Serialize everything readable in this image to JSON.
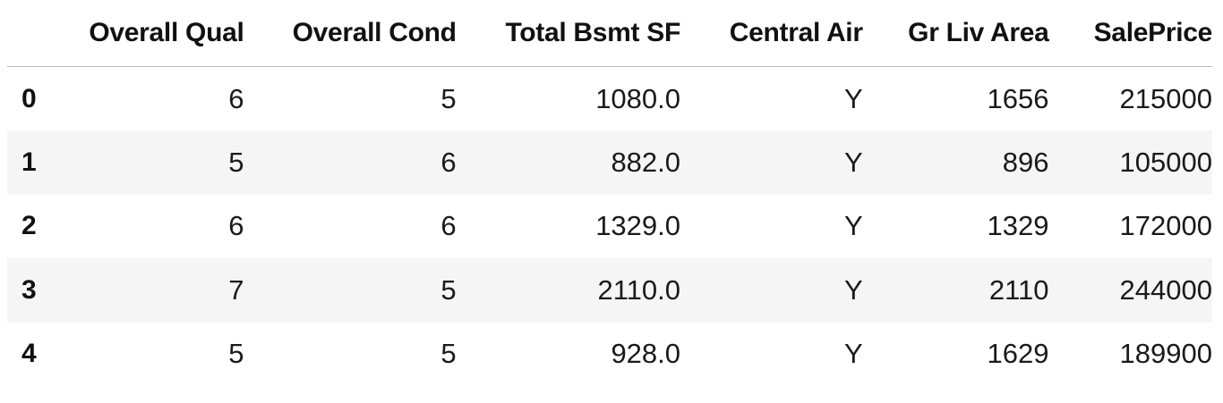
{
  "table": {
    "index_header": "",
    "columns": [
      "Overall Qual",
      "Overall Cond",
      "Total Bsmt SF",
      "Central Air",
      "Gr Liv Area",
      "SalePrice"
    ],
    "rows": [
      {
        "index": "0",
        "cells": [
          "6",
          "5",
          "1080.0",
          "Y",
          "1656",
          "215000"
        ]
      },
      {
        "index": "1",
        "cells": [
          "5",
          "6",
          "882.0",
          "Y",
          "896",
          "105000"
        ]
      },
      {
        "index": "2",
        "cells": [
          "6",
          "6",
          "1329.0",
          "Y",
          "1329",
          "172000"
        ]
      },
      {
        "index": "3",
        "cells": [
          "7",
          "5",
          "2110.0",
          "Y",
          "2110",
          "244000"
        ]
      },
      {
        "index": "4",
        "cells": [
          "5",
          "5",
          "928.0",
          "Y",
          "1629",
          "189900"
        ]
      }
    ]
  },
  "colors": {
    "even_row_bg": "#f5f5f5",
    "header_rule": "#bdbdbd",
    "text": "#111111"
  }
}
